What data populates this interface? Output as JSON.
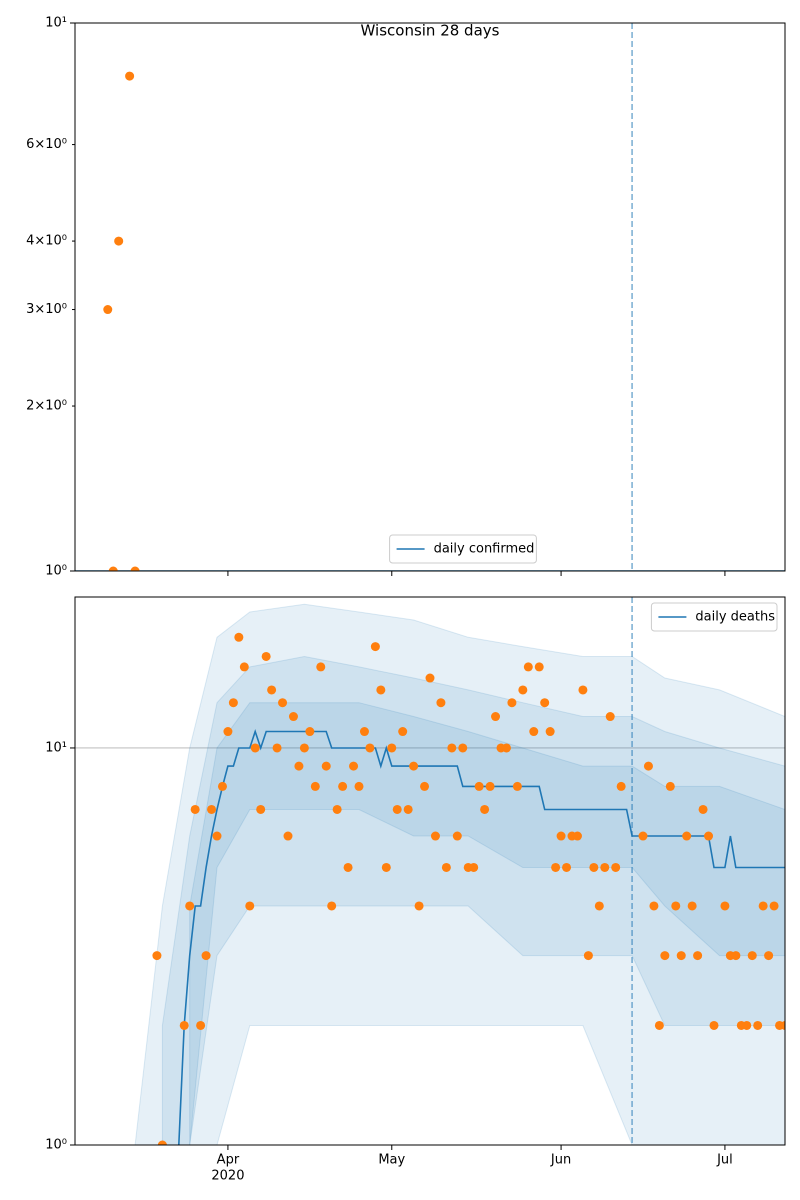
{
  "chart_data": [
    {
      "type": "line",
      "title": "Wisconsin 28 days",
      "ylog": true,
      "grid": true,
      "xlim": [
        "2020-03-04",
        "2020-07-12"
      ],
      "xticks": [
        {
          "value": "2020-04-01",
          "label": ""
        },
        {
          "value": "2020-05-01",
          "label": ""
        },
        {
          "value": "2020-06-01",
          "label": ""
        },
        {
          "value": "2020-07-01",
          "label": ""
        }
      ],
      "ylim": [
        1,
        10
      ],
      "yticks": [
        {
          "value": 1,
          "label": "10⁰"
        },
        {
          "value": 10,
          "label": "10¹"
        }
      ],
      "yminorticks": [
        {
          "value": 2,
          "label": "2×10⁰"
        },
        {
          "value": 3,
          "label": "3×10⁰"
        },
        {
          "value": 4,
          "label": "4×10⁰"
        },
        {
          "value": 6,
          "label": "6×10⁰"
        }
      ],
      "vline": {
        "x": "2020-06-14",
        "color": "#1f77b4"
      },
      "legend": "lower center",
      "series": [
        {
          "name": "daily confirmed",
          "color": "#1f77b4",
          "x": [
            "2020-03-04",
            "2020-07-12"
          ],
          "values": [
            1,
            1
          ]
        }
      ],
      "scatter": {
        "color": "#ff7f0e",
        "x": [
          "2020-03-10",
          "2020-03-11",
          "2020-03-12",
          "2020-03-14",
          "2020-03-15"
        ],
        "values": [
          3,
          1,
          4,
          8,
          1
        ]
      }
    },
    {
      "type": "line",
      "ylog": true,
      "grid": true,
      "xlim": [
        "2020-03-04",
        "2020-07-12"
      ],
      "xticks": [
        {
          "value": "2020-04-01",
          "label": "Apr",
          "sublabel": "2020"
        },
        {
          "value": "2020-05-01",
          "label": "May"
        },
        {
          "value": "2020-06-01",
          "label": "Jun"
        },
        {
          "value": "2020-07-01",
          "label": "Jul"
        }
      ],
      "ylim": [
        1,
        24
      ],
      "yticks": [
        {
          "value": 1,
          "label": "10⁰"
        },
        {
          "value": 10,
          "label": "10¹"
        }
      ],
      "vline": {
        "x": "2020-06-14",
        "color": "#1f77b4"
      },
      "legend": "upper right",
      "bands": {
        "color": "#1f77b4",
        "x": [
          "2020-03-15",
          "2020-03-20",
          "2020-03-25",
          "2020-03-30",
          "2020-04-05",
          "2020-04-15",
          "2020-04-25",
          "2020-05-05",
          "2020-05-15",
          "2020-05-25",
          "2020-06-05",
          "2020-06-14",
          "2020-06-20",
          "2020-06-30",
          "2020-07-12"
        ],
        "levels": [
          {
            "upper": [
              1,
              4,
              10,
              19,
              22,
              23,
              22,
              21,
              19,
              18,
              17,
              17,
              15,
              14,
              12
            ],
            "lower": [
              1,
              1,
              1,
              1,
              2,
              2,
              2,
              2,
              2,
              2,
              2,
              1,
              1,
              1,
              1
            ]
          },
          {
            "upper": [
              null,
              2,
              6,
              13,
              16,
              17,
              16,
              15,
              14,
              13,
              12,
              12,
              11,
              10,
              9
            ],
            "lower": [
              null,
              1,
              1,
              3,
              4,
              4,
              4,
              4,
              4,
              3,
              3,
              3,
              2,
              2,
              2
            ]
          },
          {
            "upper": [
              null,
              null,
              4,
              10,
              13,
              13,
              13,
              12,
              11,
              10,
              9,
              9,
              8,
              8,
              7
            ],
            "lower": [
              null,
              null,
              1,
              5,
              7,
              7,
              7,
              6,
              6,
              5,
              5,
              5,
              4,
              3,
              3
            ]
          }
        ]
      },
      "series": [
        {
          "name": "daily deaths",
          "color": "#1f77b4",
          "x": [
            "2020-03-23",
            "2020-03-24",
            "2020-03-25",
            "2020-03-26",
            "2020-03-27",
            "2020-03-28",
            "2020-03-29",
            "2020-03-30",
            "2020-03-31",
            "2020-04-01",
            "2020-04-02",
            "2020-04-03",
            "2020-04-05",
            "2020-04-06",
            "2020-04-07",
            "2020-04-08",
            "2020-04-19",
            "2020-04-20",
            "2020-04-28",
            "2020-04-29",
            "2020-04-30",
            "2020-05-01",
            "2020-05-13",
            "2020-05-14",
            "2020-05-28",
            "2020-05-29",
            "2020-06-13",
            "2020-06-14",
            "2020-06-28",
            "2020-06-29",
            "2020-07-01",
            "2020-07-02",
            "2020-07-03",
            "2020-07-12"
          ],
          "values": [
            1,
            2,
            3,
            4,
            4,
            5,
            6,
            7,
            8,
            9,
            9,
            10,
            10,
            11,
            10,
            11,
            11,
            10,
            10,
            9,
            10,
            9,
            9,
            8,
            8,
            7,
            7,
            6,
            6,
            5,
            5,
            6,
            5,
            5
          ]
        }
      ],
      "scatter": {
        "color": "#ff7f0e",
        "x": [
          "2020-03-19",
          "2020-03-20",
          "2020-03-24",
          "2020-03-25",
          "2020-03-26",
          "2020-03-27",
          "2020-03-28",
          "2020-03-29",
          "2020-03-30",
          "2020-03-31",
          "2020-04-01",
          "2020-04-02",
          "2020-04-03",
          "2020-04-04",
          "2020-04-05",
          "2020-04-06",
          "2020-04-07",
          "2020-04-08",
          "2020-04-09",
          "2020-04-10",
          "2020-04-11",
          "2020-04-12",
          "2020-04-13",
          "2020-04-14",
          "2020-04-15",
          "2020-04-16",
          "2020-04-17",
          "2020-04-18",
          "2020-04-19",
          "2020-04-20",
          "2020-04-21",
          "2020-04-22",
          "2020-04-23",
          "2020-04-24",
          "2020-04-25",
          "2020-04-26",
          "2020-04-27",
          "2020-04-28",
          "2020-04-29",
          "2020-04-30",
          "2020-05-01",
          "2020-05-02",
          "2020-05-03",
          "2020-05-04",
          "2020-05-05",
          "2020-05-06",
          "2020-05-07",
          "2020-05-08",
          "2020-05-09",
          "2020-05-10",
          "2020-05-11",
          "2020-05-12",
          "2020-05-13",
          "2020-05-14",
          "2020-05-15",
          "2020-05-16",
          "2020-05-17",
          "2020-05-18",
          "2020-05-19",
          "2020-05-20",
          "2020-05-21",
          "2020-05-22",
          "2020-05-23",
          "2020-05-24",
          "2020-05-25",
          "2020-05-26",
          "2020-05-27",
          "2020-05-28",
          "2020-05-29",
          "2020-05-30",
          "2020-05-31",
          "2020-06-01",
          "2020-06-02",
          "2020-06-03",
          "2020-06-04",
          "2020-06-05",
          "2020-06-06",
          "2020-06-07",
          "2020-06-08",
          "2020-06-09",
          "2020-06-10",
          "2020-06-11",
          "2020-06-12",
          "2020-06-16",
          "2020-06-17",
          "2020-06-18",
          "2020-06-19",
          "2020-06-20",
          "2020-06-21",
          "2020-06-22",
          "2020-06-23",
          "2020-06-24",
          "2020-06-25",
          "2020-06-26",
          "2020-06-27",
          "2020-06-28",
          "2020-06-29",
          "2020-07-01",
          "2020-07-02",
          "2020-07-03",
          "2020-07-04",
          "2020-07-05",
          "2020-07-06",
          "2020-07-07",
          "2020-07-08",
          "2020-07-09",
          "2020-07-10",
          "2020-07-11",
          "2020-07-12"
        ],
        "values": [
          3,
          1,
          2,
          4,
          7,
          2,
          3,
          7,
          6,
          8,
          11,
          13,
          19,
          16,
          4,
          10,
          7,
          17,
          14,
          10,
          13,
          6,
          12,
          9,
          10,
          11,
          8,
          16,
          9,
          4,
          7,
          8,
          5,
          9,
          8,
          11,
          10,
          18,
          14,
          5,
          10,
          7,
          11,
          7,
          9,
          4,
          8,
          15,
          6,
          13,
          5,
          10,
          6,
          10,
          5,
          5,
          8,
          7,
          8,
          12,
          10,
          10,
          13,
          8,
          14,
          16,
          11,
          16,
          13,
          11,
          5,
          6,
          5,
          6,
          6,
          14,
          3,
          5,
          4,
          5,
          12,
          5,
          8,
          6,
          9,
          4,
          2,
          3,
          8,
          4,
          3,
          6,
          4,
          3,
          7,
          6,
          2,
          4,
          3,
          3,
          2,
          2,
          3,
          2,
          4,
          3,
          4,
          2,
          2
        ]
      }
    }
  ]
}
